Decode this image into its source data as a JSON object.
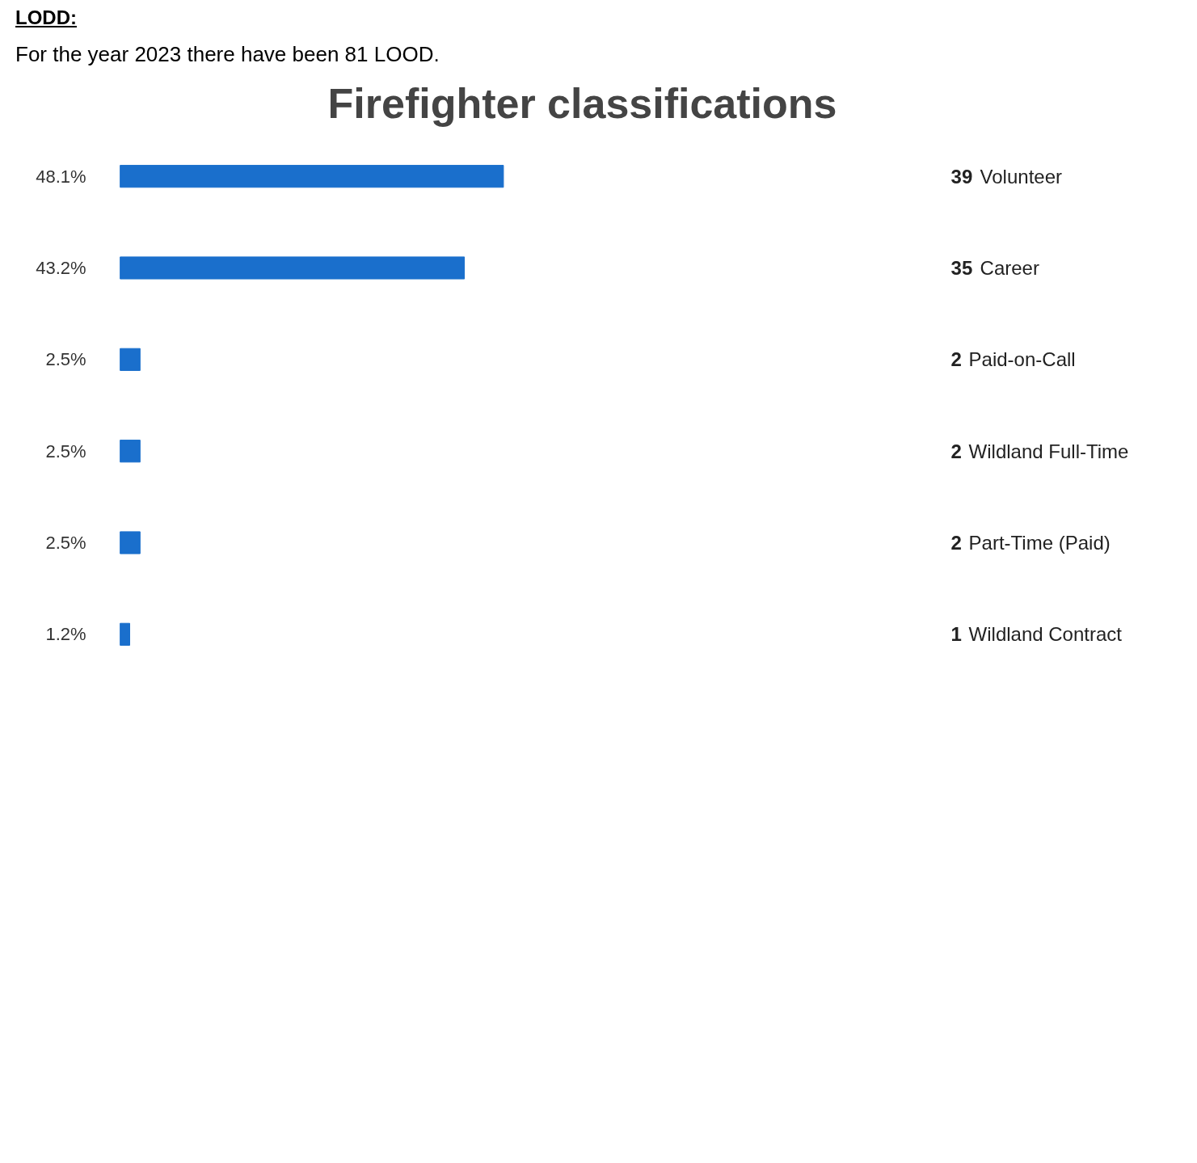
{
  "chart_data": {
    "type": "bar",
    "orientation": "horizontal",
    "title": "Firefighter classifications",
    "annotations": [
      "LODD:",
      "For the year 2023 there have been 81 LOOD."
    ],
    "categories": [
      "39 Volunteer",
      "35 Career",
      "2 Paid-on-Call",
      "2 Wildland Full-Time",
      "2 Part-Time (Paid)",
      "1 Wildland Contract"
    ],
    "values": [
      48.1,
      43.2,
      2.5,
      2.5,
      2.5,
      1.2
    ],
    "value_labels": [
      "48.1%",
      "43.2%",
      "2.5%",
      "2.5%",
      "2.5%",
      "1.2%"
    ],
    "color": "#1a6fcc",
    "grid": false
  }
}
